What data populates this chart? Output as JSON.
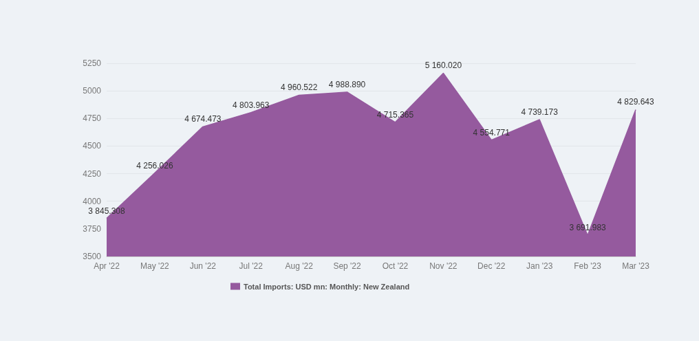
{
  "chart_data": {
    "type": "area",
    "categories": [
      "Apr '22",
      "May '22",
      "Jun '22",
      "Jul '22",
      "Aug '22",
      "Sep '22",
      "Oct '22",
      "Nov '22",
      "Dec '22",
      "Jan '23",
      "Feb '23",
      "Mar '23"
    ],
    "series": [
      {
        "name": "Total Imports: USD mn: Monthly: New Zealand",
        "color": "#955a9e",
        "values": [
          3845.308,
          4256.026,
          4674.473,
          4803.963,
          4960.522,
          4988.89,
          4715.365,
          5160.02,
          4554.771,
          4739.173,
          3691.983,
          4829.643
        ],
        "value_labels": [
          "3 845.308",
          "4 256.026",
          "4 674.473",
          "4 803.963",
          "4 960.522",
          "4 988.890",
          "4 715.365",
          "5 160.020",
          "4 554.771",
          "4 739.173",
          "3 691.983",
          "4 829.643"
        ]
      }
    ],
    "ylim": [
      3500,
      5250
    ],
    "yticks": [
      3500,
      3750,
      4000,
      4250,
      4500,
      4750,
      5000,
      5250
    ],
    "grid": "y",
    "legend": "bottom",
    "marker": "none"
  }
}
